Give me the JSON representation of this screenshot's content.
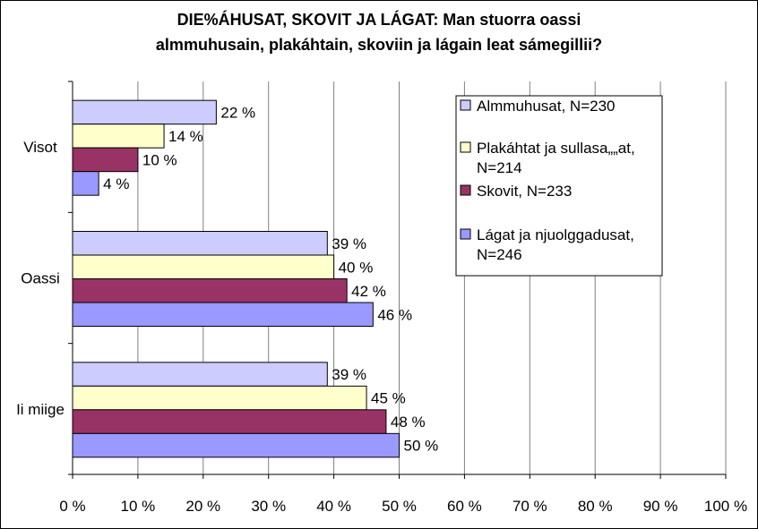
{
  "chart_data": {
    "type": "bar",
    "orientation": "horizontal",
    "title_line1": "DIE%ÁHUSAT, SKOVIT JA LÁGAT: Man stuorra oassi",
    "title_line2": "almmuhusain, plakáhtain, skoviin ja lágain leat sámegillii?",
    "categories": [
      "Visot",
      "Oassi",
      "Ii miige"
    ],
    "series": [
      {
        "name": "Almmuhusat, N=230",
        "color": "#ccccff",
        "values": [
          22,
          39,
          39
        ]
      },
      {
        "name": "Plakáhtat ja sullasa„„at, N=214",
        "color": "#ffffcc",
        "values": [
          14,
          40,
          45
        ]
      },
      {
        "name": "Skovit, N=233",
        "color": "#993366",
        "values": [
          10,
          42,
          48
        ]
      },
      {
        "name": "Lágat ja njuolggadusat, N=246",
        "color": "#9999ff",
        "values": [
          4,
          46,
          50
        ]
      }
    ],
    "value_suffix": " %",
    "xlim": [
      0,
      100
    ],
    "x_ticks": [
      "0 %",
      "10 %",
      "20 %",
      "30 %",
      "40 %",
      "50 %",
      "60 %",
      "70 %",
      "80 %",
      "90 %",
      "100 %"
    ],
    "grid": true,
    "legend_position": "top-right"
  }
}
